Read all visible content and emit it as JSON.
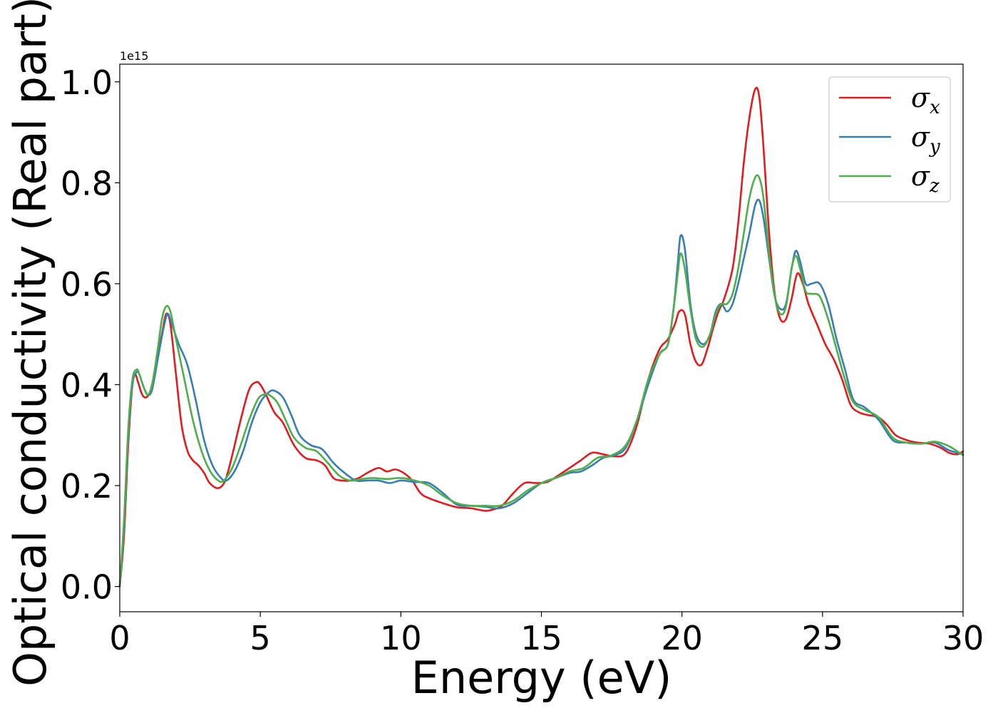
{
  "chart_data": {
    "type": "line",
    "xlabel": "Energy (eV)",
    "ylabel": "Optical conductivity (Real part)",
    "y_offset_label": "1e15",
    "xlim": [
      0,
      30
    ],
    "ylim": [
      -0.05,
      1.035
    ],
    "y_scale_factor": 1000000000000000.0,
    "xticks": [
      0,
      5,
      10,
      15,
      20,
      25,
      30
    ],
    "xtick_labels": [
      "0",
      "5",
      "10",
      "15",
      "20",
      "25",
      "30"
    ],
    "yticks": [
      0.0,
      0.2,
      0.4,
      0.6,
      0.8,
      1.0
    ],
    "ytick_labels": [
      "0.0",
      "0.2",
      "0.4",
      "0.6",
      "0.8",
      "1.0"
    ],
    "grid": false,
    "legend_position": "top-right",
    "series": [
      {
        "name": "σx",
        "symbol": "σ",
        "subscript": "x",
        "color": "#e41a1c",
        "x": [
          0,
          0.15,
          0.3,
          0.45,
          0.55,
          0.65,
          0.8,
          0.95,
          1.1,
          1.3,
          1.5,
          1.65,
          1.8,
          2.0,
          2.2,
          2.4,
          2.6,
          2.8,
          3.0,
          3.2,
          3.5,
          3.75,
          4.0,
          4.3,
          4.6,
          4.85,
          5.0,
          5.2,
          5.5,
          5.8,
          6.2,
          6.6,
          7.0,
          7.3,
          7.6,
          7.9,
          8.2,
          8.5,
          8.8,
          9.2,
          9.5,
          9.8,
          10.1,
          10.4,
          10.7,
          11.0,
          11.5,
          12.0,
          12.5,
          13.0,
          13.3,
          13.6,
          14.0,
          14.4,
          14.8,
          15.2,
          15.6,
          16.0,
          16.4,
          16.8,
          17.2,
          17.6,
          18.0,
          18.4,
          18.8,
          19.2,
          19.5,
          19.75,
          19.9,
          20.1,
          20.3,
          20.5,
          20.7,
          20.9,
          21.1,
          21.3,
          21.5,
          21.8,
          22.0,
          22.2,
          22.4,
          22.6,
          22.75,
          22.9,
          23.1,
          23.3,
          23.5,
          23.7,
          23.9,
          24.1,
          24.3,
          24.5,
          24.8,
          25.1,
          25.4,
          25.7,
          26.0,
          26.3,
          26.6,
          27.0,
          27.3,
          27.6,
          28.0,
          28.4,
          28.8,
          29.2,
          29.5,
          29.8,
          30.0
        ],
        "y": [
          0.0,
          0.1,
          0.28,
          0.4,
          0.42,
          0.405,
          0.38,
          0.375,
          0.39,
          0.44,
          0.5,
          0.54,
          0.52,
          0.42,
          0.32,
          0.27,
          0.25,
          0.24,
          0.225,
          0.205,
          0.195,
          0.21,
          0.26,
          0.33,
          0.39,
          0.405,
          0.4,
          0.38,
          0.345,
          0.325,
          0.28,
          0.255,
          0.25,
          0.24,
          0.215,
          0.21,
          0.21,
          0.215,
          0.225,
          0.235,
          0.228,
          0.232,
          0.225,
          0.21,
          0.185,
          0.175,
          0.165,
          0.157,
          0.155,
          0.15,
          0.153,
          0.16,
          0.185,
          0.205,
          0.205,
          0.207,
          0.22,
          0.235,
          0.25,
          0.265,
          0.262,
          0.258,
          0.265,
          0.32,
          0.41,
          0.47,
          0.49,
          0.52,
          0.545,
          0.54,
          0.48,
          0.445,
          0.44,
          0.47,
          0.51,
          0.545,
          0.57,
          0.63,
          0.72,
          0.84,
          0.93,
          0.985,
          0.97,
          0.87,
          0.7,
          0.58,
          0.53,
          0.53,
          0.57,
          0.62,
          0.6,
          0.56,
          0.52,
          0.48,
          0.45,
          0.41,
          0.36,
          0.345,
          0.34,
          0.335,
          0.32,
          0.3,
          0.29,
          0.285,
          0.283,
          0.275,
          0.265,
          0.262,
          0.268
        ]
      },
      {
        "name": "σy",
        "symbol": "σ",
        "subscript": "y",
        "color": "#377eb8",
        "x": [
          0,
          0.15,
          0.3,
          0.45,
          0.6,
          0.7,
          0.85,
          1.0,
          1.15,
          1.35,
          1.55,
          1.7,
          1.85,
          2.1,
          2.4,
          2.7,
          3.0,
          3.3,
          3.6,
          3.8,
          4.1,
          4.4,
          4.7,
          5.0,
          5.3,
          5.5,
          5.8,
          6.1,
          6.4,
          6.8,
          7.2,
          7.6,
          8.0,
          8.4,
          8.8,
          9.2,
          9.6,
          10.0,
          10.5,
          11.0,
          11.5,
          12.0,
          12.5,
          13.0,
          13.5,
          14.0,
          14.5,
          15.0,
          15.5,
          16.0,
          16.4,
          16.8,
          17.2,
          17.6,
          18.0,
          18.4,
          18.8,
          19.2,
          19.5,
          19.7,
          19.85,
          19.95,
          20.1,
          20.3,
          20.5,
          20.75,
          21.0,
          21.2,
          21.4,
          21.6,
          21.8,
          22.0,
          22.2,
          22.4,
          22.6,
          22.75,
          22.9,
          23.1,
          23.3,
          23.5,
          23.7,
          23.9,
          24.05,
          24.2,
          24.4,
          24.6,
          24.9,
          25.2,
          25.5,
          25.8,
          26.1,
          26.5,
          27.0,
          27.5,
          28.0,
          28.5,
          29.0,
          29.5,
          30.0
        ],
        "y": [
          0.0,
          0.12,
          0.3,
          0.4,
          0.425,
          0.42,
          0.395,
          0.38,
          0.39,
          0.45,
          0.51,
          0.54,
          0.52,
          0.48,
          0.44,
          0.37,
          0.29,
          0.24,
          0.215,
          0.21,
          0.23,
          0.27,
          0.325,
          0.365,
          0.385,
          0.388,
          0.375,
          0.34,
          0.3,
          0.28,
          0.272,
          0.245,
          0.225,
          0.21,
          0.21,
          0.21,
          0.205,
          0.21,
          0.207,
          0.205,
          0.185,
          0.162,
          0.16,
          0.158,
          0.155,
          0.165,
          0.185,
          0.205,
          0.215,
          0.225,
          0.228,
          0.24,
          0.255,
          0.26,
          0.275,
          0.33,
          0.4,
          0.46,
          0.48,
          0.55,
          0.64,
          0.695,
          0.67,
          0.56,
          0.5,
          0.48,
          0.5,
          0.545,
          0.56,
          0.545,
          0.56,
          0.6,
          0.65,
          0.7,
          0.755,
          0.765,
          0.73,
          0.65,
          0.575,
          0.55,
          0.56,
          0.63,
          0.665,
          0.645,
          0.6,
          0.6,
          0.6,
          0.56,
          0.49,
          0.43,
          0.37,
          0.355,
          0.33,
          0.29,
          0.285,
          0.283,
          0.285,
          0.27,
          0.262
        ]
      },
      {
        "name": "σz",
        "symbol": "σ",
        "subscript": "z",
        "color": "#4daf4a",
        "x": [
          0,
          0.15,
          0.3,
          0.45,
          0.6,
          0.7,
          0.85,
          1.0,
          1.15,
          1.35,
          1.5,
          1.65,
          1.8,
          2.0,
          2.3,
          2.6,
          2.9,
          3.2,
          3.5,
          3.7,
          4.0,
          4.3,
          4.6,
          4.9,
          5.1,
          5.3,
          5.6,
          5.9,
          6.2,
          6.6,
          7.0,
          7.4,
          7.8,
          8.2,
          8.6,
          9.0,
          9.5,
          10.0,
          10.5,
          11.0,
          11.5,
          12.0,
          12.5,
          13.0,
          13.5,
          14.0,
          14.5,
          15.0,
          15.5,
          16.0,
          16.5,
          17.0,
          17.5,
          18.0,
          18.4,
          18.8,
          19.2,
          19.5,
          19.7,
          19.85,
          19.95,
          20.1,
          20.3,
          20.5,
          20.75,
          21.0,
          21.2,
          21.4,
          21.6,
          21.8,
          22.0,
          22.2,
          22.4,
          22.6,
          22.75,
          22.9,
          23.1,
          23.3,
          23.5,
          23.7,
          23.9,
          24.05,
          24.2,
          24.4,
          24.6,
          24.9,
          25.2,
          25.5,
          25.8,
          26.1,
          26.5,
          27.0,
          27.5,
          28.0,
          28.5,
          29.0,
          29.5,
          30.0
        ],
        "y": [
          0.0,
          0.13,
          0.31,
          0.41,
          0.43,
          0.42,
          0.395,
          0.38,
          0.4,
          0.47,
          0.53,
          0.555,
          0.545,
          0.49,
          0.41,
          0.33,
          0.27,
          0.23,
          0.21,
          0.21,
          0.235,
          0.28,
          0.33,
          0.37,
          0.38,
          0.38,
          0.365,
          0.33,
          0.295,
          0.275,
          0.268,
          0.245,
          0.22,
          0.21,
          0.213,
          0.215,
          0.213,
          0.215,
          0.21,
          0.2,
          0.18,
          0.165,
          0.16,
          0.16,
          0.16,
          0.17,
          0.19,
          0.205,
          0.215,
          0.228,
          0.235,
          0.255,
          0.26,
          0.28,
          0.33,
          0.41,
          0.46,
          0.48,
          0.55,
          0.62,
          0.66,
          0.63,
          0.55,
          0.49,
          0.475,
          0.5,
          0.54,
          0.56,
          0.56,
          0.58,
          0.63,
          0.7,
          0.77,
          0.81,
          0.81,
          0.77,
          0.66,
          0.575,
          0.54,
          0.555,
          0.63,
          0.655,
          0.63,
          0.585,
          0.58,
          0.575,
          0.53,
          0.47,
          0.41,
          0.365,
          0.35,
          0.335,
          0.295,
          0.285,
          0.283,
          0.287,
          0.278,
          0.26
        ]
      }
    ]
  }
}
